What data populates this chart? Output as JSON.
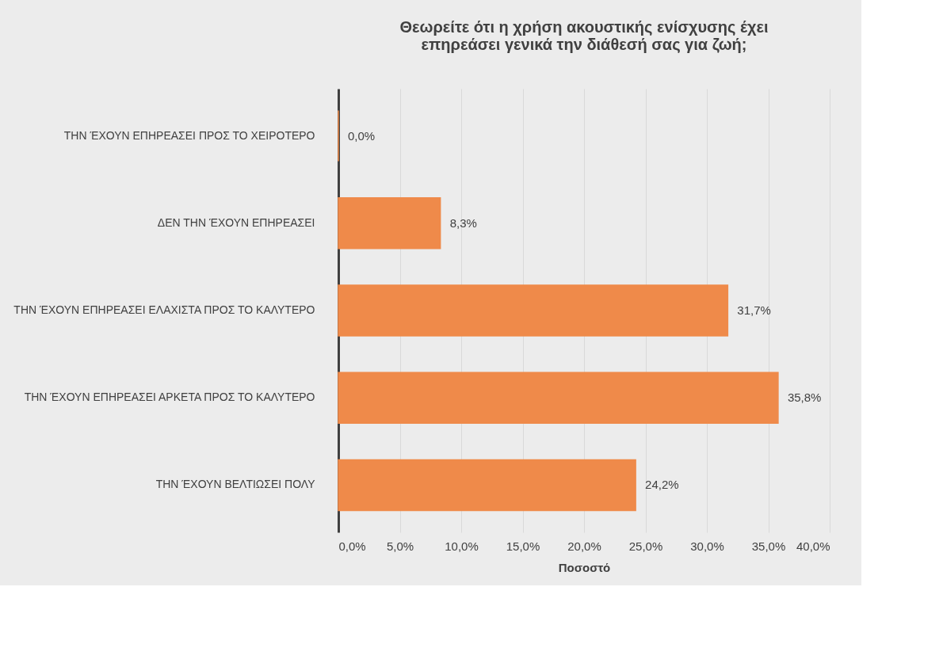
{
  "chart_data": {
    "type": "bar",
    "orientation": "horizontal",
    "title": "Θεωρείτε ότι η χρήση ακουστικής ενίσχυσης έχει επηρεάσει γενικά την διάθεσή σας για ζωή;",
    "xlabel": "Ποσοστό",
    "categories": [
      "ΤΗΝ ΈΧΟΥΝ ΕΠΗΡΕΑΣΕΙ ΠΡΟΣ ΤΟ ΧΕΙΡΟΤΕΡΟ",
      "ΔΕΝ ΤΗΝ ΈΧΟΥΝ ΕΠΗΡΕΑΣΕΙ",
      "ΤΗΝ ΈΧΟΥΝ ΕΠΗΡΕΑΣΕΙ ΕΛΑΧΙΣΤΑ ΠΡΟΣ ΤΟ ΚΑΛΥΤΕΡΟ",
      "ΤΗΝ ΈΧΟΥΝ ΕΠΗΡΕΑΣΕΙ ΑΡΚΕΤΑ ΠΡΟΣ ΤΟ ΚΑΛΥΤΕΡΟ",
      "ΤΗΝ ΈΧΟΥΝ ΒΕΛΤΙΩΣΕΙ ΠΟΛΥ"
    ],
    "values": [
      0,
      8.3,
      31.7,
      35.8,
      24.2
    ],
    "value_labels": [
      "0,0%",
      "8,3%",
      "31,7%",
      "35,8%",
      "24,2%"
    ],
    "color": "#ef8a4a",
    "xlim": [
      0,
      40
    ],
    "xticks": [
      {
        "value": 0,
        "label": "0,0%"
      },
      {
        "value": 5,
        "label": "5,0%"
      },
      {
        "value": 10,
        "label": "10,0%"
      },
      {
        "value": 15,
        "label": "15,0%"
      },
      {
        "value": 20,
        "label": "20,0%"
      },
      {
        "value": 25,
        "label": "25,0%"
      },
      {
        "value": 30,
        "label": "30,0%"
      },
      {
        "value": 35,
        "label": "35,0%"
      },
      {
        "value": 40,
        "label": "40,0%"
      }
    ],
    "grid": "x"
  }
}
